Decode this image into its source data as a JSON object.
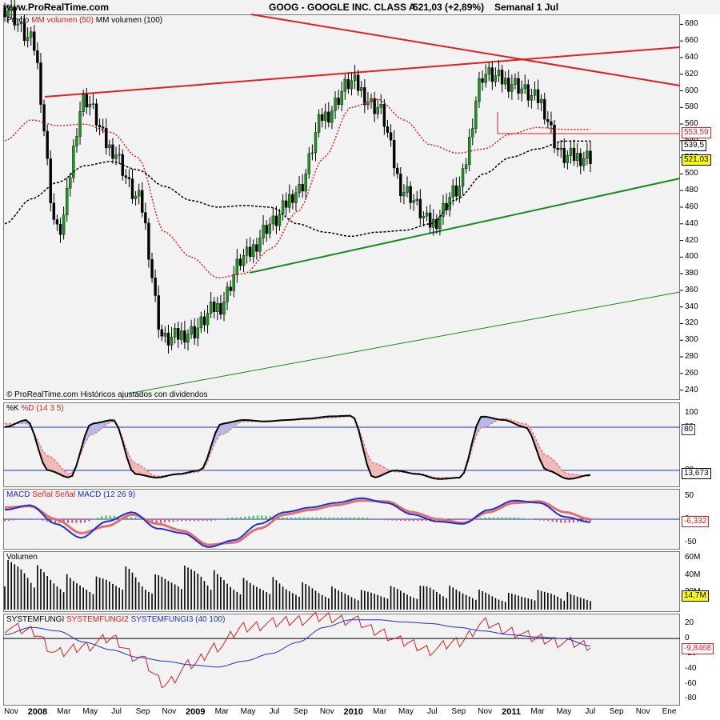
{
  "header": {
    "site": "www.ProRealTime.com",
    "title": "GOOG - GOOGLE INC. CLASS A",
    "price_info": "521,03 (+2,89%)",
    "period": "Semanal  1 Jul"
  },
  "price_panel": {
    "legend_a": "Precio",
    "legend_b": "MM volumen (50)",
    "legend_c": "MM volumen (100)",
    "footnote": "© ProRealTime.com Históricos ajustados con dividendos",
    "badges": [
      "553,59",
      "539,5",
      "521,03"
    ]
  },
  "stoch_panel": {
    "legend_a": "%K",
    "legend_b": "%D (14 3 5)",
    "badges": [
      "80",
      "13,673"
    ]
  },
  "macd_panel": {
    "legend_a": "MACD",
    "legend_b": "Señal Señal",
    "legend_c": "MACD (12 26 9)",
    "badges": [
      "-6,332"
    ]
  },
  "volume_panel": {
    "legend_a": "Volumen",
    "badges": [
      "14,7M"
    ]
  },
  "sys_panel": {
    "legend_a": "SYSTEMFUNGI",
    "legend_b": "SYSTEMFUNGI2",
    "legend_c": "SYSTEMFUNGI3 (40 100)",
    "badges": [
      "-9,8468"
    ]
  },
  "x_axis": [
    {
      "label": "Nov",
      "bold": false
    },
    {
      "label": "2008",
      "bold": true
    },
    {
      "label": "Mar",
      "bold": false
    },
    {
      "label": "May",
      "bold": false
    },
    {
      "label": "Jul",
      "bold": false
    },
    {
      "label": "Sep",
      "bold": false
    },
    {
      "label": "Nov",
      "bold": false
    },
    {
      "label": "2009",
      "bold": true
    },
    {
      "label": "Mar",
      "bold": false
    },
    {
      "label": "May",
      "bold": false
    },
    {
      "label": "Jul",
      "bold": false
    },
    {
      "label": "Sep",
      "bold": false
    },
    {
      "label": "Nov",
      "bold": false
    },
    {
      "label": "2010",
      "bold": true
    },
    {
      "label": "Mar",
      "bold": false
    },
    {
      "label": "May",
      "bold": false
    },
    {
      "label": "Jul",
      "bold": false
    },
    {
      "label": "Sep",
      "bold": false
    },
    {
      "label": "Nov",
      "bold": false
    },
    {
      "label": "2011",
      "bold": true
    },
    {
      "label": "Mar",
      "bold": false
    },
    {
      "label": "May",
      "bold": false
    },
    {
      "label": "Jul",
      "bold": false
    },
    {
      "label": "Sep",
      "bold": false
    },
    {
      "label": "Nov",
      "bold": false
    },
    {
      "label": "Ene",
      "bold": false
    }
  ],
  "chart_data": [
    {
      "type": "line",
      "title": "GOOG - GOOGLE INC. CLASS A",
      "x": [
        "Nov 2007",
        "2008",
        "Mar 2008",
        "May 2008",
        "Jul 2008",
        "Sep 2008",
        "Nov 2008",
        "2009",
        "Mar 2009",
        "May 2009",
        "Jul 2009",
        "Sep 2009",
        "Nov 2009",
        "2010",
        "Mar 2010",
        "May 2010",
        "Jul 2010",
        "Sep 2010",
        "Nov 2010",
        "2011",
        "Mar 2011",
        "May 2011",
        "Jul 2011"
      ],
      "series": [
        {
          "name": "Precio",
          "values": [
            700,
            660,
            430,
            590,
            530,
            470,
            300,
            310,
            340,
            400,
            440,
            480,
            570,
            610,
            580,
            480,
            440,
            480,
            620,
            610,
            590,
            520,
            521.03
          ]
        },
        {
          "name": "MM volumen (50)",
          "values": [
            540,
            565,
            558,
            560,
            550,
            520,
            430,
            400,
            375,
            380,
            410,
            455,
            520,
            580,
            590,
            565,
            535,
            525,
            530,
            548,
            556,
            553.59,
            553.59
          ]
        },
        {
          "name": "MM volumen (100)",
          "values": [
            440,
            470,
            490,
            510,
            515,
            505,
            485,
            468,
            460,
            462,
            460,
            440,
            430,
            425,
            430,
            432,
            440,
            470,
            500,
            520,
            530,
            539.5,
            539.5
          ]
        }
      ],
      "ylim": [
        230,
        690
      ],
      "y_ticks": [
        240,
        260,
        280,
        300,
        320,
        340,
        360,
        380,
        400,
        420,
        440,
        460,
        480,
        500,
        520,
        540,
        560,
        580,
        600,
        620,
        640,
        660,
        680
      ]
    },
    {
      "type": "line",
      "title": "%K %D (14 3 5)",
      "series": [
        {
          "name": "%K",
          "values": [
            80,
            90,
            20,
            10,
            85,
            90,
            15,
            10,
            15,
            20,
            85,
            90,
            88,
            90,
            92,
            95,
            96,
            10,
            20,
            15,
            8,
            10,
            95,
            90,
            80,
            20,
            8,
            13.673
          ]
        },
        {
          "name": "%D",
          "values": [
            85,
            85,
            40,
            15,
            70,
            88,
            30,
            12,
            14,
            18,
            70,
            88,
            88,
            90,
            91,
            93,
            95,
            30,
            18,
            16,
            10,
            10,
            80,
            92,
            85,
            40,
            15,
            12
          ]
        }
      ],
      "ylim": [
        0,
        100
      ],
      "y_ticks": [
        20,
        80,
        100
      ]
    },
    {
      "type": "line",
      "title": "MACD (12 26 9)",
      "series": [
        {
          "name": "MACD",
          "values": [
            20,
            30,
            -10,
            -40,
            -5,
            15,
            -20,
            -30,
            -60,
            -45,
            -10,
            15,
            25,
            35,
            45,
            35,
            10,
            -5,
            -10,
            20,
            40,
            35,
            5,
            -6.332
          ]
        },
        {
          "name": "Señal",
          "values": [
            25,
            28,
            0,
            -30,
            -15,
            10,
            -10,
            -25,
            -55,
            -50,
            -20,
            10,
            20,
            30,
            40,
            38,
            15,
            0,
            -8,
            15,
            35,
            38,
            15,
            0
          ]
        }
      ],
      "ylim": [
        -60,
        60
      ],
      "y_ticks": [
        -50,
        0,
        50
      ]
    },
    {
      "type": "bar",
      "title": "Volumen",
      "values": [
        45,
        50,
        40,
        35,
        30,
        30,
        35,
        40,
        30,
        35,
        40,
        45,
        35,
        30,
        28,
        30,
        25,
        25,
        22,
        20,
        18,
        20,
        22,
        20,
        25,
        22,
        20,
        18,
        15,
        16,
        18,
        20,
        15,
        14.7
      ],
      "ylim": [
        0,
        65
      ],
      "y_ticks": [
        "20M",
        "40M",
        "60M"
      ]
    },
    {
      "type": "line",
      "title": "SYSTEMFUNGI SYSTEMFUNGI2 SYSTEMFUNGI3 (40 100)",
      "series": [
        {
          "name": "SYSTEMFUNGI2",
          "values": [
            15,
            10,
            -20,
            -10,
            0,
            -25,
            -60,
            -35,
            -10,
            15,
            20,
            25,
            28,
            25,
            10,
            -5,
            -15,
            -5,
            20,
            10,
            0,
            -5,
            -9.8468
          ]
        },
        {
          "name": "SYSTEMFUNGI3",
          "values": [
            5,
            15,
            10,
            -5,
            -15,
            -25,
            -30,
            -35,
            -38,
            -30,
            -20,
            -5,
            15,
            25,
            25,
            22,
            20,
            15,
            10,
            5,
            2,
            0,
            -9.8468
          ]
        }
      ],
      "ylim": [
        -85,
        30
      ],
      "y_ticks": [
        -80,
        -60,
        -40,
        -20,
        0,
        20
      ]
    }
  ]
}
